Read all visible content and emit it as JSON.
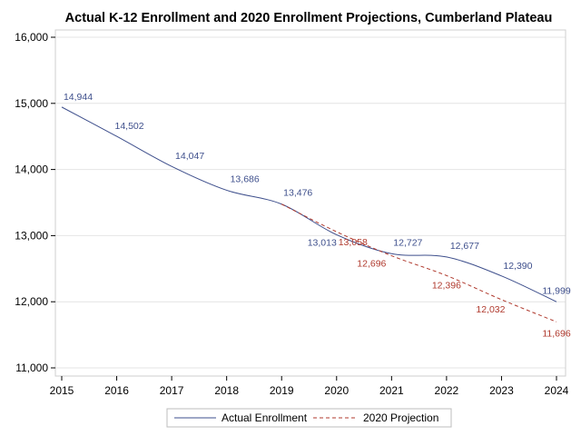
{
  "chart_data": {
    "type": "line",
    "title": "Actual K-12 Enrollment and 2020 Enrollment Projections, Cumberland Plateau",
    "xlabel": "",
    "ylabel": "",
    "xlim": [
      2015,
      2024
    ],
    "ylim": [
      11000,
      16000
    ],
    "xticks": [
      "2015",
      "2016",
      "2017",
      "2018",
      "2019",
      "2020",
      "2021",
      "2022",
      "2023",
      "2024"
    ],
    "yticks": [
      "11,000",
      "12,000",
      "13,000",
      "14,000",
      "15,000",
      "16,000"
    ],
    "grid": "horizontal",
    "legend_position": "bottom",
    "series": [
      {
        "name": "Actual Enrollment",
        "color": "#3e4f8c",
        "style": "solid",
        "x": [
          2015,
          2016,
          2017,
          2018,
          2019,
          2020,
          2021,
          2022,
          2023,
          2024
        ],
        "values": [
          14944,
          14502,
          14047,
          13686,
          13476,
          13013,
          12727,
          12677,
          12390,
          11999
        ],
        "labels": [
          "14,944",
          "14,502",
          "14,047",
          "13,686",
          "13,476",
          "13,013",
          "12,727",
          "12,677",
          "12,390",
          "11,999"
        ]
      },
      {
        "name": "2020 Projection",
        "color": "#b03a2e",
        "style": "dashed",
        "x": [
          2019,
          2020,
          2021,
          2022,
          2023,
          2024
        ],
        "values": [
          13476,
          13058,
          12696,
          12396,
          12032,
          11696
        ],
        "labels": [
          "",
          "13,058",
          "12,696",
          "12,396",
          "12,032",
          "11,696"
        ]
      }
    ]
  }
}
